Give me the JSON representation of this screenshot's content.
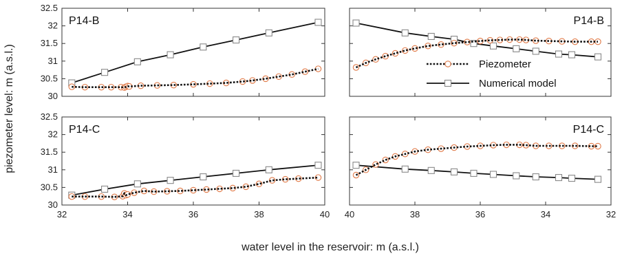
{
  "figure": {
    "xlabel": "water level in the reservoir: m (a.s.l.)",
    "ylabel": "piezometer level: m (a.s.l.)"
  },
  "legend": {
    "piezometer_label": "Piezometer",
    "model_label": "Numerical model"
  },
  "colors": {
    "piezometer_line": "#111111",
    "piezometer_marker": "#e07a48",
    "model_line": "#111111",
    "model_marker": "#888888",
    "axis": "#333333"
  },
  "chart_data": [
    {
      "type": "line",
      "panel": "top-left",
      "label": "P14-B",
      "label_position": "top-left",
      "xlim": [
        32,
        40
      ],
      "ylim": [
        30,
        32.5
      ],
      "x_ticks": [
        "32",
        "34",
        "36",
        "38",
        "40"
      ],
      "y_ticks": [
        "30",
        "30.5",
        "31",
        "31.5",
        "32",
        "32.5"
      ],
      "series": [
        {
          "name": "Piezometer",
          "x": [
            32.3,
            32.7,
            33.2,
            33.5,
            33.8,
            33.9,
            33.95,
            34.0,
            34.05,
            34.4,
            34.9,
            35.4,
            36.0,
            36.5,
            37.0,
            37.5,
            37.8,
            38.2,
            38.6,
            39.0,
            39.4,
            39.8
          ],
          "y": [
            30.27,
            30.26,
            30.26,
            30.26,
            30.26,
            30.25,
            30.27,
            30.29,
            30.28,
            30.3,
            30.31,
            30.32,
            30.34,
            30.36,
            30.38,
            30.42,
            30.45,
            30.5,
            30.56,
            30.62,
            30.7,
            30.78
          ]
        },
        {
          "name": "Numerical model",
          "x": [
            32.3,
            33.3,
            34.3,
            35.3,
            36.3,
            37.3,
            38.3,
            39.8
          ],
          "y": [
            30.38,
            30.68,
            30.98,
            31.18,
            31.4,
            31.6,
            31.8,
            32.1
          ]
        }
      ]
    },
    {
      "type": "line",
      "panel": "top-right",
      "label": "P14-B",
      "label_position": "top-right",
      "xlim": [
        40,
        32
      ],
      "ylim": [
        30,
        32.5
      ],
      "x_ticks": [
        "40",
        "38",
        "36",
        "34",
        "32"
      ],
      "y_ticks": [
        "30",
        "30.5",
        "31",
        "31.5",
        "32",
        "32.5"
      ],
      "legend_position": "center",
      "series": [
        {
          "name": "Piezometer",
          "x": [
            39.8,
            39.5,
            39.2,
            38.9,
            38.6,
            38.3,
            38.0,
            37.6,
            37.2,
            36.8,
            36.4,
            36.0,
            35.7,
            35.4,
            35.1,
            34.8,
            34.6,
            34.3,
            33.9,
            33.5,
            33.1,
            32.6,
            32.4
          ],
          "y": [
            30.82,
            30.95,
            31.05,
            31.14,
            31.22,
            31.3,
            31.36,
            31.43,
            31.47,
            31.51,
            31.54,
            31.57,
            31.59,
            31.6,
            31.61,
            31.61,
            31.6,
            31.58,
            31.57,
            31.56,
            31.55,
            31.55,
            31.55
          ]
        },
        {
          "name": "Numerical model",
          "x": [
            39.8,
            38.3,
            37.5,
            36.8,
            36.2,
            35.6,
            34.9,
            34.3,
            33.6,
            33.2,
            32.4
          ],
          "y": [
            32.08,
            31.8,
            31.7,
            31.62,
            31.5,
            31.43,
            31.35,
            31.28,
            31.2,
            31.18,
            31.12
          ]
        }
      ]
    },
    {
      "type": "line",
      "panel": "bottom-left",
      "label": "P14-C",
      "label_position": "top-left",
      "xlim": [
        32,
        40
      ],
      "ylim": [
        30,
        32.5
      ],
      "x_ticks": [
        "32",
        "34",
        "36",
        "38",
        "40"
      ],
      "y_ticks": [
        "30",
        "30.5",
        "31",
        "31.5",
        "32",
        "32.5"
      ],
      "series": [
        {
          "name": "Piezometer",
          "x": [
            32.3,
            32.7,
            33.2,
            33.6,
            33.85,
            33.9,
            33.95,
            34.0,
            34.2,
            34.5,
            34.8,
            35.2,
            35.6,
            36.0,
            36.4,
            36.8,
            37.2,
            37.6,
            38.0,
            38.4,
            38.8,
            39.2,
            39.8
          ],
          "y": [
            30.24,
            30.24,
            30.24,
            30.23,
            30.25,
            30.33,
            30.28,
            30.3,
            30.35,
            30.4,
            30.38,
            30.39,
            30.4,
            30.42,
            30.44,
            30.46,
            30.48,
            30.52,
            30.6,
            30.7,
            30.73,
            30.75,
            30.78
          ]
        },
        {
          "name": "Numerical model",
          "x": [
            32.3,
            33.3,
            34.3,
            35.3,
            36.3,
            37.3,
            38.3,
            39.8
          ],
          "y": [
            30.28,
            30.45,
            30.6,
            30.7,
            30.8,
            30.9,
            31.0,
            31.13
          ]
        }
      ]
    },
    {
      "type": "line",
      "panel": "bottom-right",
      "label": "P14-C",
      "label_position": "top-right",
      "xlim": [
        40,
        32
      ],
      "ylim": [
        30,
        32.5
      ],
      "x_ticks": [
        "40",
        "38",
        "36",
        "34",
        "32"
      ],
      "y_ticks": [
        "30",
        "30.5",
        "31",
        "31.5",
        "32",
        "32.5"
      ],
      "series": [
        {
          "name": "Piezometer",
          "x": [
            39.8,
            39.5,
            39.2,
            38.9,
            38.6,
            38.3,
            38.0,
            37.6,
            37.2,
            36.8,
            36.4,
            36.0,
            35.6,
            35.2,
            34.8,
            34.6,
            34.3,
            33.9,
            33.5,
            33.1,
            32.6,
            32.4
          ],
          "y": [
            30.85,
            31.0,
            31.15,
            31.28,
            31.38,
            31.45,
            31.52,
            31.57,
            31.6,
            31.63,
            31.66,
            31.68,
            31.7,
            31.71,
            31.71,
            31.7,
            31.68,
            31.68,
            31.68,
            31.68,
            31.67,
            31.67
          ]
        },
        {
          "name": "Numerical model",
          "x": [
            39.8,
            38.3,
            37.5,
            36.8,
            36.2,
            35.6,
            34.9,
            34.3,
            33.6,
            33.2,
            32.4
          ],
          "y": [
            31.13,
            31.02,
            30.98,
            30.94,
            30.9,
            30.87,
            30.83,
            30.8,
            30.78,
            30.76,
            30.73
          ]
        }
      ]
    }
  ]
}
